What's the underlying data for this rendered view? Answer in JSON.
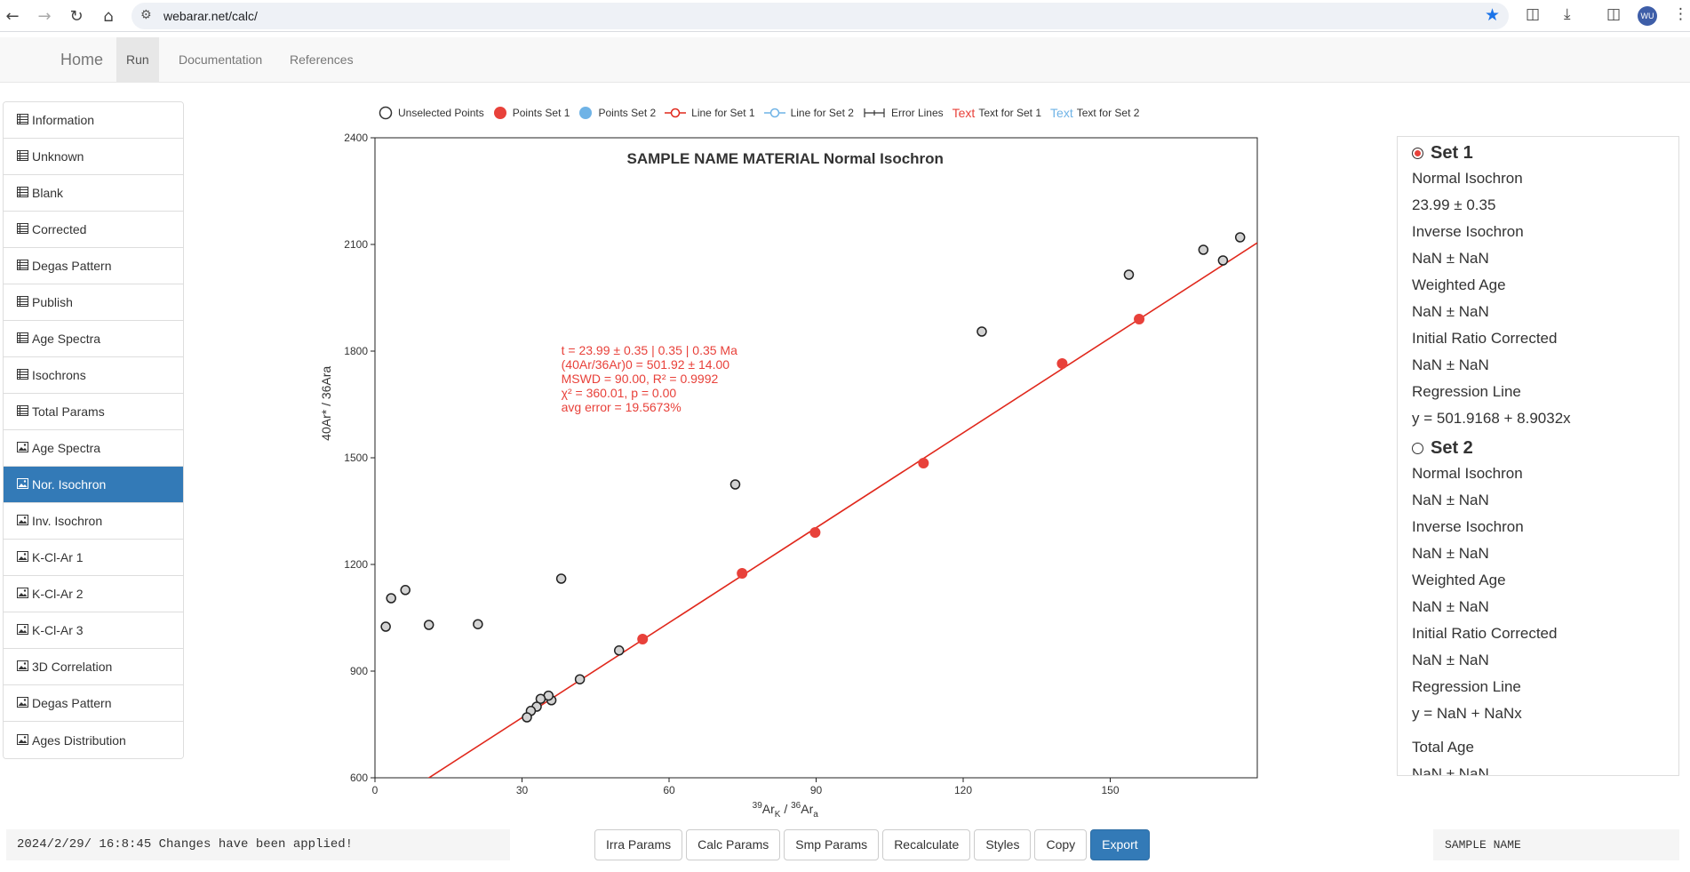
{
  "browser": {
    "url": "webarar.net/calc/",
    "avatar_initials": "WU"
  },
  "topnav": {
    "brand": "Home",
    "items": [
      "Run",
      "Documentation",
      "References"
    ]
  },
  "sidebar": {
    "items": [
      {
        "label": "Information",
        "icon": "table-icon"
      },
      {
        "label": "Unknown",
        "icon": "table-icon"
      },
      {
        "label": "Blank",
        "icon": "table-icon"
      },
      {
        "label": "Corrected",
        "icon": "table-icon"
      },
      {
        "label": "Degas Pattern",
        "icon": "table-icon"
      },
      {
        "label": "Publish",
        "icon": "table-icon"
      },
      {
        "label": "Age Spectra",
        "icon": "table-icon"
      },
      {
        "label": "Isochrons",
        "icon": "table-icon"
      },
      {
        "label": "Total Params",
        "icon": "table-icon"
      },
      {
        "label": "Age Spectra",
        "icon": "picture-icon"
      },
      {
        "label": "Nor. Isochron",
        "icon": "picture-icon",
        "active": true
      },
      {
        "label": "Inv. Isochron",
        "icon": "picture-icon"
      },
      {
        "label": "K-Cl-Ar 1",
        "icon": "picture-icon"
      },
      {
        "label": "K-Cl-Ar 2",
        "icon": "picture-icon"
      },
      {
        "label": "K-Cl-Ar 3",
        "icon": "picture-icon"
      },
      {
        "label": "3D Correlation",
        "icon": "picture-icon"
      },
      {
        "label": "Degas Pattern",
        "icon": "picture-icon"
      },
      {
        "label": "Ages Distribution",
        "icon": "picture-icon"
      }
    ]
  },
  "legend": {
    "unselected": "Unselected Points",
    "set1_points": "Points Set 1",
    "set2_points": "Points Set 2",
    "set1_line": "Line for Set 1",
    "set2_line": "Line for Set 2",
    "error_lines": "Error Lines",
    "text_token": "Text",
    "set1_text": "Text for Set 1",
    "set2_text": "Text for Set 2"
  },
  "colors": {
    "set1": "#e8413a",
    "set2": "#6fb3e6",
    "unselected_fill": "#d3d3d3",
    "accent": "#337ab7",
    "line": "#e0281c"
  },
  "chart_data": {
    "type": "scatter",
    "title": "SAMPLE NAME MATERIAL Normal Isochron",
    "xlabel_sup": "39",
    "xlabel_main": "Ar",
    "xlabel_sub": "K",
    "xlabel_slash": " / ",
    "xlabel_sup2": "36",
    "xlabel_main2": "Ar",
    "xlabel_sub2": "a",
    "ylabel": "40Ar* / 36Ara",
    "xlim": [
      0,
      180
    ],
    "ylim": [
      600,
      2400
    ],
    "xticks": [
      0,
      30,
      60,
      90,
      120,
      150
    ],
    "yticks": [
      600,
      900,
      1200,
      1500,
      1800,
      2100,
      2400
    ],
    "series": [
      {
        "name": "Unselected Points",
        "points": [
          [
            2.2,
            1025
          ],
          [
            3.3,
            1105
          ],
          [
            6.2,
            1128
          ],
          [
            11.0,
            1030
          ],
          [
            21.0,
            1032
          ],
          [
            38.0,
            1160
          ],
          [
            49.8,
            958
          ],
          [
            41.8,
            877
          ],
          [
            36.0,
            818
          ],
          [
            35.4,
            831
          ],
          [
            33.8,
            822
          ],
          [
            33.0,
            800
          ],
          [
            31.8,
            788
          ],
          [
            31.0,
            770
          ],
          [
            73.5,
            1425
          ],
          [
            123.8,
            1855
          ],
          [
            153.8,
            2015
          ],
          [
            169.0,
            2085
          ],
          [
            173.0,
            2055
          ],
          [
            176.5,
            2120
          ]
        ]
      },
      {
        "name": "Points Set 1",
        "points": [
          [
            54.6,
            990
          ],
          [
            74.9,
            1175
          ],
          [
            89.8,
            1290
          ],
          [
            111.9,
            1485
          ],
          [
            140.2,
            1765
          ],
          [
            155.9,
            1890
          ]
        ]
      }
    ],
    "regression_line": {
      "intercept": 501.9168,
      "slope": 8.9032
    },
    "annotation": [
      "t = 23.99 ± 0.35 | 0.35 | 0.35 Ma",
      "(40Ar/36Ar)0 = 501.92 ± 14.00",
      "MSWD = 90.00, R² = 0.9992",
      "χ² = 360.01, p = 0.00",
      "avg error = 19.5673%"
    ]
  },
  "results": {
    "set1": {
      "title": "Set 1",
      "lines": [
        "Normal Isochron",
        "23.99 ± 0.35",
        "Inverse Isochron",
        "NaN ± NaN",
        "Weighted Age",
        "NaN ± NaN",
        "Initial Ratio Corrected",
        "NaN ± NaN",
        "Regression Line",
        "y = 501.9168 + 8.9032x"
      ]
    },
    "set2": {
      "title": "Set 2",
      "lines": [
        "Normal Isochron",
        "NaN ± NaN",
        "Inverse Isochron",
        "NaN ± NaN",
        "Weighted Age",
        "NaN ± NaN",
        "Initial Ratio Corrected",
        "NaN ± NaN",
        "Regression Line",
        "y = NaN + NaNx"
      ]
    },
    "total_age_label": "Total Age",
    "total_age_value": "NaN ± NaN"
  },
  "footer": {
    "status": "2024/2/29/ 16:8:45 Changes have been applied!",
    "buttons": [
      "Irra Params",
      "Calc Params",
      "Smp Params",
      "Recalculate",
      "Styles",
      "Copy",
      "Export"
    ],
    "sample_name": "SAMPLE NAME"
  }
}
